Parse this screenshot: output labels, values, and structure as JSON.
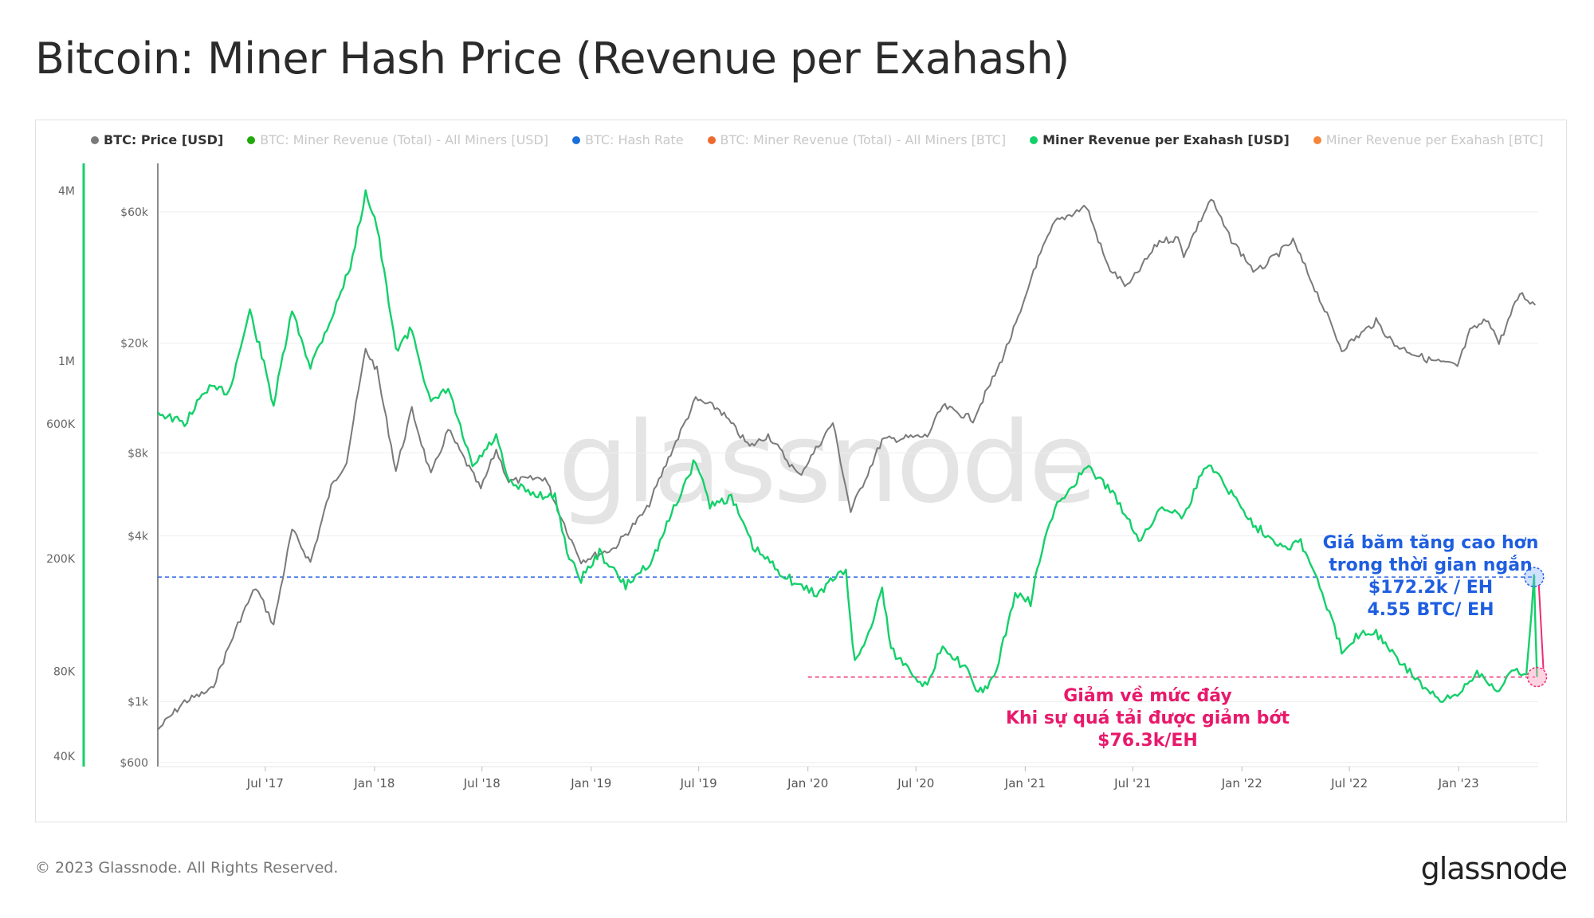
{
  "title": "Bitcoin: Miner Hash Price (Revenue per Exahash)",
  "watermark": "glassnode",
  "footer": "© 2023 Glassnode. All Rights Reserved.",
  "brand": "glassnode",
  "colors": {
    "price": "#7a7a7a",
    "hashprice_usd": "#14d06a",
    "high_line": "#2b63e6",
    "low_line": "#ef2b72",
    "green_axis": "#14d06a"
  },
  "legend": [
    {
      "label": "BTC: Price [USD]",
      "color": "#7a7a7a",
      "active": true
    },
    {
      "label": "BTC: Miner Revenue (Total) - All Miners [USD]",
      "color": "#21a80a",
      "active": false
    },
    {
      "label": "BTC: Hash Rate",
      "color": "#1a6fd6",
      "active": false
    },
    {
      "label": "BTC: Miner Revenue (Total) - All Miners [BTC]",
      "color": "#f06a30",
      "active": false
    },
    {
      "label": "Miner Revenue per Exahash [USD]",
      "color": "#14d06a",
      "active": true
    },
    {
      "label": "Miner Revenue per Exahash [BTC]",
      "color": "#f5873a",
      "active": false
    }
  ],
  "annotations": {
    "high": {
      "line1": "Giá băm tăng cao hơn",
      "line2": "trong thời gian ngắn",
      "line3": "$172.2k / EH",
      "line4": "4.55 BTC/ EH"
    },
    "low": {
      "line1": "Giảm về mức đáy",
      "line2": "Khi sự quá tải được giảm bớt",
      "line3": "$76.3k/EH"
    }
  },
  "chart_data": {
    "type": "line",
    "x_scale": "time",
    "x_range": [
      "2017-01-01",
      "2023-05-15"
    ],
    "x_ticks": [
      "Jul '17",
      "Jan '18",
      "Jul '18",
      "Jan '19",
      "Jul '19",
      "Jan '20",
      "Jul '20",
      "Jan '21",
      "Jul '21",
      "Jan '22",
      "Jul '22",
      "Jan '23"
    ],
    "y_axis_left_outer": {
      "label": "Miner Revenue per Exahash [USD]",
      "scale": "log",
      "range": [
        38000,
        5000000
      ],
      "ticks": [
        "4M",
        "1M",
        "600K",
        "200K",
        "80K",
        "40K"
      ]
    },
    "y_axis_left_inner": {
      "label": "BTC: Price [USD]",
      "scale": "log",
      "range": [
        600,
        90000
      ],
      "ticks": [
        "$60k",
        "$20k",
        "$8k",
        "$4k",
        "$1k",
        "$600"
      ]
    },
    "grid": true,
    "legend_position": "top-left",
    "series": [
      {
        "name": "BTC: Price [USD]",
        "axis": "price",
        "points": [
          [
            "2017-01-01",
            790
          ],
          [
            "2017-02-15",
            1000
          ],
          [
            "2017-04-01",
            1100
          ],
          [
            "2017-05-20",
            2000
          ],
          [
            "2017-06-15",
            2600
          ],
          [
            "2017-07-15",
            1900
          ],
          [
            "2017-08-15",
            4200
          ],
          [
            "2017-09-15",
            3200
          ],
          [
            "2017-10-20",
            6000
          ],
          [
            "2017-11-15",
            7500
          ],
          [
            "2017-12-17",
            19000
          ],
          [
            "2018-01-05",
            16000
          ],
          [
            "2018-02-06",
            6900
          ],
          [
            "2018-03-05",
            11500
          ],
          [
            "2018-04-06",
            6600
          ],
          [
            "2018-05-05",
            9700
          ],
          [
            "2018-06-29",
            5900
          ],
          [
            "2018-07-25",
            8200
          ],
          [
            "2018-08-15",
            6300
          ],
          [
            "2018-10-15",
            6500
          ],
          [
            "2018-11-25",
            4000
          ],
          [
            "2018-12-15",
            3250
          ],
          [
            "2019-02-08",
            3600
          ],
          [
            "2019-04-05",
            5000
          ],
          [
            "2019-05-15",
            8000
          ],
          [
            "2019-06-26",
            12500
          ],
          [
            "2019-08-05",
            11500
          ],
          [
            "2019-09-25",
            8400
          ],
          [
            "2019-10-26",
            9300
          ],
          [
            "2019-12-17",
            6600
          ],
          [
            "2020-02-12",
            10300
          ],
          [
            "2020-03-13",
            4900
          ],
          [
            "2020-05-05",
            8900
          ],
          [
            "2020-07-20",
            9200
          ],
          [
            "2020-08-15",
            11800
          ],
          [
            "2020-10-05",
            10600
          ],
          [
            "2020-11-15",
            16000
          ],
          [
            "2020-12-28",
            27000
          ],
          [
            "2021-01-15",
            37000
          ],
          [
            "2021-02-20",
            55000
          ],
          [
            "2021-04-14",
            63000
          ],
          [
            "2021-05-20",
            38000
          ],
          [
            "2021-06-22",
            32000
          ],
          [
            "2021-08-15",
            47000
          ],
          [
            "2021-09-15",
            48000
          ],
          [
            "2021-09-25",
            42000
          ],
          [
            "2021-11-10",
            67000
          ],
          [
            "2021-12-10",
            49000
          ],
          [
            "2022-01-24",
            36000
          ],
          [
            "2022-03-28",
            47000
          ],
          [
            "2022-05-12",
            29000
          ],
          [
            "2022-06-18",
            19000
          ],
          [
            "2022-08-15",
            24000
          ],
          [
            "2022-09-15",
            19800
          ],
          [
            "2022-11-08",
            17500
          ],
          [
            "2022-12-30",
            16500
          ],
          [
            "2023-01-20",
            22000
          ],
          [
            "2023-02-20",
            24500
          ],
          [
            "2023-03-10",
            20000
          ],
          [
            "2023-04-14",
            30400
          ],
          [
            "2023-05-10",
            27500
          ]
        ]
      },
      {
        "name": "Miner Revenue per Exahash [USD]",
        "axis": "hashprice",
        "points": [
          [
            "2017-01-01",
            660000
          ],
          [
            "2017-02-15",
            600000
          ],
          [
            "2017-03-25",
            800000
          ],
          [
            "2017-05-01",
            780000
          ],
          [
            "2017-06-05",
            1500000
          ],
          [
            "2017-06-25",
            1050000
          ],
          [
            "2017-07-15",
            700000
          ],
          [
            "2017-08-15",
            1500000
          ],
          [
            "2017-09-15",
            960000
          ],
          [
            "2017-10-25",
            1500000
          ],
          [
            "2017-11-25",
            2300000
          ],
          [
            "2017-12-17",
            4000000
          ],
          [
            "2018-01-05",
            3000000
          ],
          [
            "2018-02-06",
            1100000
          ],
          [
            "2018-03-05",
            1300000
          ],
          [
            "2018-04-06",
            700000
          ],
          [
            "2018-05-05",
            800000
          ],
          [
            "2018-06-15",
            420000
          ],
          [
            "2018-07-25",
            540000
          ],
          [
            "2018-08-15",
            370000
          ],
          [
            "2018-09-25",
            340000
          ],
          [
            "2018-11-01",
            330000
          ],
          [
            "2018-11-25",
            200000
          ],
          [
            "2018-12-15",
            170000
          ],
          [
            "2019-01-15",
            210000
          ],
          [
            "2019-02-28",
            160000
          ],
          [
            "2019-04-15",
            200000
          ],
          [
            "2019-05-20",
            300000
          ],
          [
            "2019-06-26",
            450000
          ],
          [
            "2019-07-20",
            310000
          ],
          [
            "2019-08-25",
            330000
          ],
          [
            "2019-09-30",
            220000
          ],
          [
            "2019-11-15",
            180000
          ],
          [
            "2019-12-17",
            160000
          ],
          [
            "2020-01-20",
            150000
          ],
          [
            "2020-02-12",
            170000
          ],
          [
            "2020-03-05",
            180000
          ],
          [
            "2020-03-20",
            85000
          ],
          [
            "2020-04-20",
            120000
          ],
          [
            "2020-05-05",
            160000
          ],
          [
            "2020-05-20",
            95000
          ],
          [
            "2020-07-20",
            70000
          ],
          [
            "2020-08-15",
            100000
          ],
          [
            "2020-09-30",
            78000
          ],
          [
            "2020-10-10",
            66000
          ],
          [
            "2020-11-10",
            75000
          ],
          [
            "2020-12-15",
            150000
          ],
          [
            "2021-01-10",
            140000
          ],
          [
            "2021-01-25",
            200000
          ],
          [
            "2021-02-20",
            300000
          ],
          [
            "2021-03-20",
            360000
          ],
          [
            "2021-04-14",
            420000
          ],
          [
            "2021-05-20",
            360000
          ],
          [
            "2021-06-22",
            280000
          ],
          [
            "2021-07-15",
            230000
          ],
          [
            "2021-08-15",
            300000
          ],
          [
            "2021-09-10",
            300000
          ],
          [
            "2021-09-25",
            280000
          ],
          [
            "2021-10-25",
            400000
          ],
          [
            "2021-11-10",
            430000
          ],
          [
            "2021-12-10",
            350000
          ],
          [
            "2022-01-24",
            260000
          ],
          [
            "2022-03-15",
            220000
          ],
          [
            "2022-04-10",
            230000
          ],
          [
            "2022-05-12",
            160000
          ],
          [
            "2022-06-18",
            95000
          ],
          [
            "2022-07-20",
            110000
          ],
          [
            "2022-08-15",
            110000
          ],
          [
            "2022-09-15",
            90000
          ],
          [
            "2022-10-15",
            78000
          ],
          [
            "2022-11-10",
            68000
          ],
          [
            "2022-12-01",
            62000
          ],
          [
            "2022-12-30",
            66000
          ],
          [
            "2023-02-01",
            80000
          ],
          [
            "2023-03-10",
            68000
          ],
          [
            "2023-04-05",
            82000
          ],
          [
            "2023-04-25",
            77000
          ],
          [
            "2023-05-08",
            172200
          ],
          [
            "2023-05-13",
            76300
          ]
        ]
      }
    ],
    "reference_lines": [
      {
        "value": 172200,
        "axis": "hashprice",
        "color": "#2b63e6",
        "label": "$172.2k / EH"
      },
      {
        "value": 76300,
        "axis": "hashprice",
        "color": "#ef2b72",
        "label": "$76.3k/EH"
      }
    ]
  }
}
